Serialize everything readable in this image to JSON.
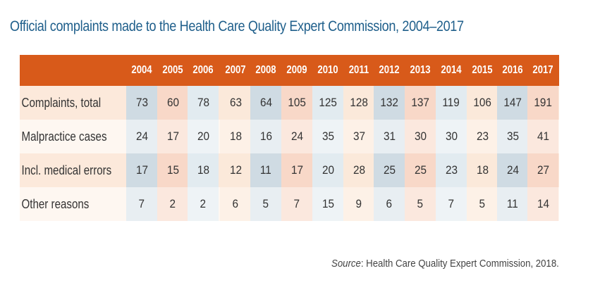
{
  "title": "Official complaints made to the Health Care Quality Expert Commission,  2004–2017",
  "colors": {
    "header_bg": "#d85a1a",
    "title_color": "#1f5f8b",
    "row_bg": "#fdf3eb",
    "cell_blue": "#cfdbe3",
    "cell_peach": "#f8d8c8",
    "cell_lightblue": "#e2ebf0",
    "cell_cream": "#fbe9da"
  },
  "table": {
    "years": [
      "2004",
      "2005",
      "2006",
      "2007",
      "2008",
      "2009",
      "2010",
      "2011",
      "2012",
      "2013",
      "2014",
      "2015",
      "2016",
      "2017"
    ],
    "rows": [
      {
        "label": "Complaints, total",
        "values": [
          "73",
          "60",
          "78",
          "63",
          "64",
          "105",
          "125",
          "128",
          "132",
          "137",
          "119",
          "106",
          "147",
          "191"
        ]
      },
      {
        "label": "Malpractice cases",
        "values": [
          "24",
          "17",
          "20",
          "18",
          "16",
          "24",
          "35",
          "37",
          "31",
          "30",
          "30",
          "23",
          "35",
          "41"
        ]
      },
      {
        "label": "Incl. medical errors",
        "values": [
          "17",
          "15",
          "18",
          "12",
          "11",
          "17",
          "20",
          "28",
          "25",
          "25",
          "23",
          "18",
          "24",
          "27"
        ]
      },
      {
        "label": "Other reasons",
        "values": [
          "7",
          "2",
          "2",
          "6",
          "5",
          "7",
          "15",
          "9",
          "6",
          "5",
          "7",
          "5",
          "11",
          "14"
        ]
      }
    ]
  },
  "source": {
    "prefix": "Source",
    "text": ": Health Care Quality Expert Commission, 2018."
  }
}
